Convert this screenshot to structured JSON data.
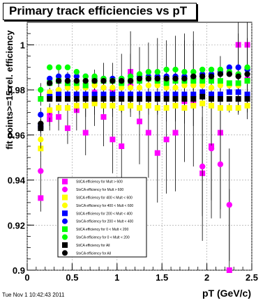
{
  "stamp": "Tue Nov  1 10:42:43 2011",
  "chart_data": {
    "type": "scatter",
    "title": "Primary track efficiencies vs pT",
    "xlabel": "pT (GeV/c)",
    "ylabel": "fit points>=15 rel. efficiency",
    "xlim": [
      0,
      2.5
    ],
    "ylim": [
      0.9,
      1.01
    ],
    "xticks": [
      {
        "value": 0,
        "label": "0"
      },
      {
        "value": 0.5,
        "label": "0.5"
      },
      {
        "value": 1,
        "label": "1"
      },
      {
        "value": 1.5,
        "label": "1.5"
      },
      {
        "value": 2,
        "label": "2"
      },
      {
        "value": 2.5,
        "label": "2.5"
      }
    ],
    "yticks": [
      {
        "value": 0.9,
        "label": "0.9"
      },
      {
        "value": 0.92,
        "label": "0.92"
      },
      {
        "value": 0.94,
        "label": "0.94"
      },
      {
        "value": 0.96,
        "label": "0.96"
      },
      {
        "value": 0.98,
        "label": "0.98"
      },
      {
        "value": 1.0,
        "label": "1"
      }
    ],
    "grid": true,
    "legend_position": "bottom-center",
    "x": [
      0.15,
      0.25,
      0.35,
      0.45,
      0.55,
      0.65,
      0.75,
      0.85,
      0.95,
      1.05,
      1.15,
      1.25,
      1.35,
      1.45,
      1.55,
      1.65,
      1.75,
      1.85,
      1.95,
      2.05,
      2.15,
      2.25,
      2.35,
      2.45
    ],
    "series": [
      {
        "name": "StiCA efficiency  for Mult > 600",
        "color": "#ff00ff",
        "marker": "square",
        "values": [
          0.932,
          0.967,
          0.968,
          0.963,
          0.971,
          0.961,
          0.975,
          0.968,
          0.958,
          0.955,
          0.988,
          0.966,
          0.961,
          0.952,
          0.958,
          0.961,
          0.975,
          0.974,
          0.943,
          0.955,
          0.961,
          0.9,
          1.0,
          1.0
        ],
        "errors": [
          0.006,
          0.005,
          0.006,
          0.007,
          0.009,
          0.01,
          0.011,
          0.013,
          0.015,
          0.016,
          0.018,
          0.019,
          0.02,
          0.022,
          0.024,
          0.026,
          0.027,
          0.028,
          0.03,
          0.032,
          0.034,
          0.036,
          0.03,
          0.03
        ]
      },
      {
        "name": "StvCA efficiency  for Mult > 600",
        "color": "#ff00ff",
        "marker": "circle",
        "values": [
          0.944,
          0.969,
          0.984,
          0.982,
          0.978,
          0.977,
          0.979,
          0.981,
          0.98,
          0.983,
          0.982,
          0.984,
          0.985,
          0.986,
          0.984,
          0.985,
          0.985,
          0.985,
          0.946,
          0.954,
          0.947,
          0.929,
          0.987,
          0.985
        ],
        "errors": [
          0.006,
          0.005,
          0.005,
          0.006,
          0.008,
          0.009,
          0.01,
          0.011,
          0.012,
          0.013,
          0.014,
          0.015,
          0.016,
          0.017,
          0.018,
          0.019,
          0.02,
          0.021,
          0.022,
          0.023,
          0.024,
          0.025,
          0.018,
          0.018
        ]
      },
      {
        "name": "StiCA efficiency  for 400 < Mult < 600",
        "color": "#ffff00",
        "marker": "square",
        "values": [
          0.954,
          0.971,
          0.972,
          0.972,
          0.973,
          0.973,
          0.974,
          0.973,
          0.973,
          0.972,
          0.973,
          0.972,
          0.973,
          0.972,
          0.972,
          0.973,
          0.972,
          0.973,
          0.974,
          0.973,
          0.972,
          0.972,
          0.972,
          0.973
        ],
        "errors": [
          0.004,
          0.002,
          0.002,
          0.002,
          0.002,
          0.002,
          0.002,
          0.002,
          0.002,
          0.002,
          0.002,
          0.002,
          0.002,
          0.002,
          0.002,
          0.002,
          0.002,
          0.002,
          0.002,
          0.002,
          0.002,
          0.002,
          0.002,
          0.002
        ]
      },
      {
        "name": "StvCA efficiency  for 400 < Mult < 600",
        "color": "#ffff00",
        "marker": "circle",
        "values": [
          0.958,
          0.979,
          0.98,
          0.981,
          0.981,
          0.981,
          0.982,
          0.981,
          0.981,
          0.981,
          0.981,
          0.981,
          0.982,
          0.982,
          0.981,
          0.981,
          0.982,
          0.982,
          0.982,
          0.981,
          0.982,
          0.982,
          0.982,
          0.984
        ],
        "errors": [
          0.004,
          0.002,
          0.002,
          0.002,
          0.002,
          0.002,
          0.002,
          0.002,
          0.002,
          0.002,
          0.002,
          0.002,
          0.002,
          0.002,
          0.002,
          0.002,
          0.002,
          0.002,
          0.002,
          0.002,
          0.002,
          0.002,
          0.002,
          0.002
        ]
      },
      {
        "name": "StiCA efficiency  for 200 < Mult < 400",
        "color": "#0000ff",
        "marker": "square",
        "values": [
          0.964,
          0.977,
          0.978,
          0.978,
          0.978,
          0.978,
          0.978,
          0.978,
          0.978,
          0.978,
          0.978,
          0.978,
          0.978,
          0.978,
          0.978,
          0.978,
          0.978,
          0.978,
          0.979,
          0.978,
          0.978,
          0.979,
          0.979,
          0.978
        ],
        "errors": [
          0.003,
          0.001,
          0.001,
          0.001,
          0.001,
          0.001,
          0.001,
          0.001,
          0.001,
          0.001,
          0.001,
          0.001,
          0.001,
          0.001,
          0.001,
          0.001,
          0.001,
          0.001,
          0.001,
          0.001,
          0.001,
          0.001,
          0.001,
          0.001
        ]
      },
      {
        "name": "StvCA efficiency  for 200 < Mult < 400",
        "color": "#0000ff",
        "marker": "circle",
        "values": [
          0.969,
          0.985,
          0.986,
          0.986,
          0.986,
          0.986,
          0.985,
          0.985,
          0.985,
          0.985,
          0.986,
          0.986,
          0.986,
          0.986,
          0.986,
          0.986,
          0.986,
          0.986,
          0.987,
          0.987,
          0.988,
          0.99,
          0.99,
          0.989
        ],
        "errors": [
          0.003,
          0.001,
          0.001,
          0.001,
          0.001,
          0.001,
          0.001,
          0.001,
          0.001,
          0.001,
          0.001,
          0.001,
          0.001,
          0.001,
          0.001,
          0.001,
          0.001,
          0.001,
          0.001,
          0.001,
          0.001,
          0.001,
          0.001,
          0.001
        ]
      },
      {
        "name": "StiCA efficiency  for 0 < Mult < 200",
        "color": "#00ff00",
        "marker": "square",
        "values": [
          0.976,
          0.983,
          0.984,
          0.983,
          0.983,
          0.982,
          0.984,
          0.984,
          0.984,
          0.983,
          0.984,
          0.984,
          0.985,
          0.984,
          0.983,
          0.984,
          0.984,
          0.984,
          0.984,
          0.984,
          0.984,
          0.983,
          0.983,
          0.984
        ],
        "errors": [
          0.003,
          0.001,
          0.001,
          0.001,
          0.001,
          0.001,
          0.001,
          0.001,
          0.001,
          0.001,
          0.001,
          0.001,
          0.001,
          0.001,
          0.001,
          0.001,
          0.001,
          0.001,
          0.001,
          0.001,
          0.001,
          0.001,
          0.001,
          0.001
        ]
      },
      {
        "name": "StvCA efficiency  for 0 < Mult < 200",
        "color": "#00ff00",
        "marker": "circle",
        "values": [
          0.98,
          0.99,
          0.99,
          0.99,
          0.988,
          0.986,
          0.986,
          0.985,
          0.984,
          0.985,
          0.986,
          0.987,
          0.988,
          0.988,
          0.989,
          0.989,
          0.988,
          0.988,
          0.989,
          0.989,
          0.989,
          0.988,
          0.987,
          0.99
        ],
        "errors": [
          0.003,
          0.001,
          0.001,
          0.001,
          0.001,
          0.001,
          0.001,
          0.001,
          0.001,
          0.001,
          0.001,
          0.001,
          0.001,
          0.001,
          0.001,
          0.001,
          0.001,
          0.001,
          0.001,
          0.001,
          0.001,
          0.001,
          0.001,
          0.001
        ]
      },
      {
        "name": "StiCA efficiency  for All",
        "color": "#000000",
        "marker": "square",
        "values": [
          0.963,
          0.976,
          0.976,
          0.976,
          0.976,
          0.976,
          0.976,
          0.976,
          0.976,
          0.976,
          0.976,
          0.976,
          0.976,
          0.976,
          0.976,
          0.976,
          0.976,
          0.976,
          0.977,
          0.976,
          0.976,
          0.976,
          0.976,
          0.976
        ],
        "errors": [
          0.002,
          0.001,
          0.001,
          0.001,
          0.001,
          0.001,
          0.001,
          0.001,
          0.001,
          0.001,
          0.001,
          0.001,
          0.001,
          0.001,
          0.001,
          0.001,
          0.001,
          0.001,
          0.001,
          0.001,
          0.001,
          0.001,
          0.001,
          0.001
        ]
      },
      {
        "name": "StvCA efficiency  for All",
        "color": "#000000",
        "marker": "circle",
        "values": [
          0.965,
          0.983,
          0.984,
          0.984,
          0.984,
          0.984,
          0.984,
          0.984,
          0.984,
          0.984,
          0.984,
          0.985,
          0.985,
          0.985,
          0.985,
          0.985,
          0.985,
          0.986,
          0.986,
          0.986,
          0.987,
          0.987,
          0.986,
          0.987
        ],
        "errors": [
          0.002,
          0.001,
          0.001,
          0.001,
          0.001,
          0.001,
          0.001,
          0.001,
          0.001,
          0.001,
          0.001,
          0.001,
          0.001,
          0.001,
          0.001,
          0.001,
          0.001,
          0.001,
          0.001,
          0.001,
          0.001,
          0.001,
          0.001,
          0.001
        ]
      }
    ]
  }
}
